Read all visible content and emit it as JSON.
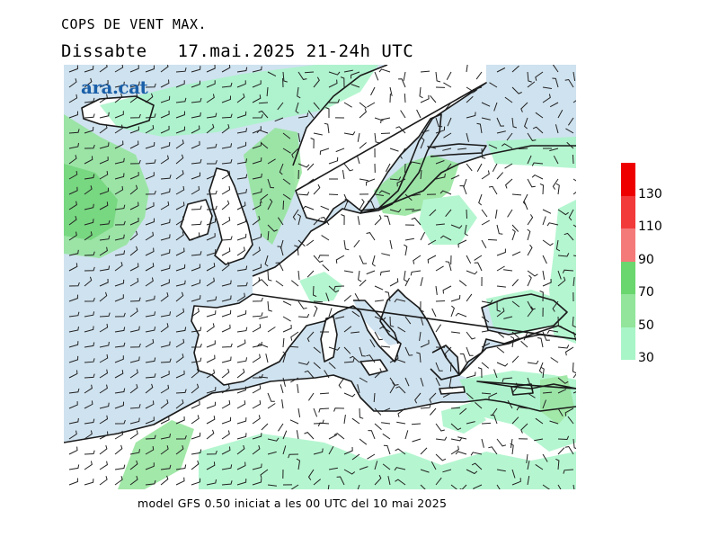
{
  "header": {
    "title": "COPS DE VENT MAX.",
    "day": "Dissabte",
    "datetime": "17.mai.2025 21-24h UTC"
  },
  "logo": {
    "text": "ara.cat",
    "color": "#1a5fa8"
  },
  "caption": "model GFS 0.50 iniciat a les 00 UTC del 10 mai 2025",
  "map": {
    "sea_color": "#cfe2ef",
    "land_color": "#ffffff",
    "coastline_color": "#1a1a1a",
    "barb_color": "#222222"
  },
  "legend": {
    "items": [
      {
        "label": "30",
        "color": "#a8f5c8"
      },
      {
        "label": "50",
        "color": "#92e59a"
      },
      {
        "label": "70",
        "color": "#6ad66e"
      },
      {
        "label": "90",
        "color": "#f47a7a"
      },
      {
        "label": "110",
        "color": "#f23a3a"
      },
      {
        "label": "130",
        "color": "#ee0000"
      }
    ]
  }
}
